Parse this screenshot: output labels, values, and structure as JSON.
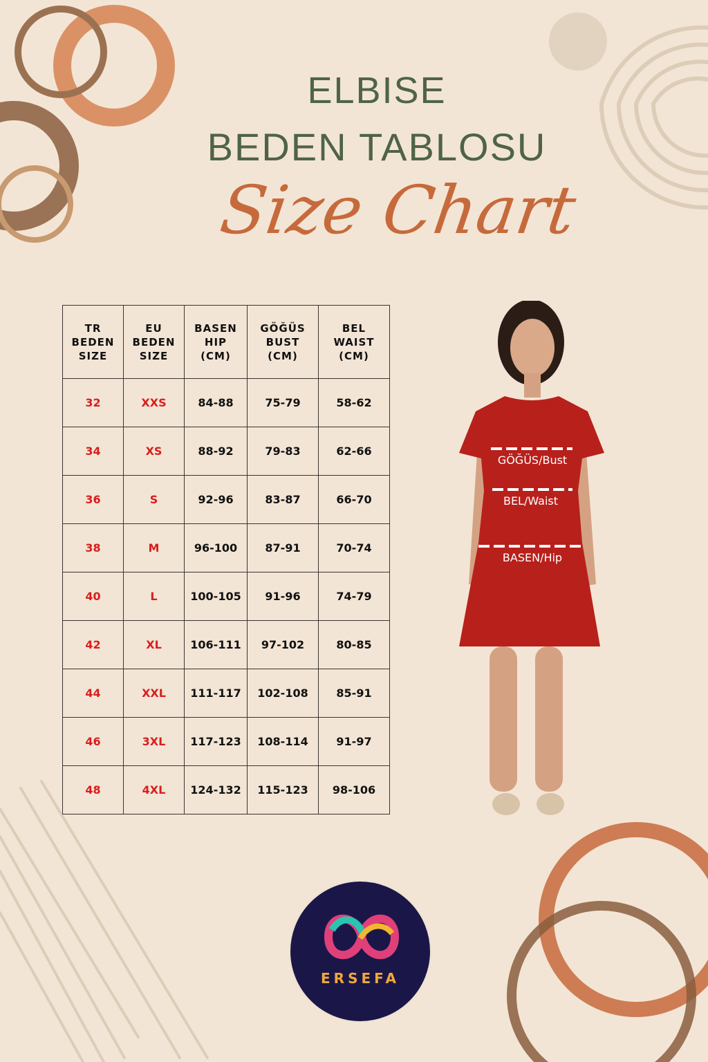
{
  "title": {
    "line1": "ELBISE",
    "line2": "BEDEN TABLOSU",
    "script": "Size Chart"
  },
  "table": {
    "headers": [
      [
        "TR",
        "BEDEN",
        "SIZE"
      ],
      [
        "EU",
        "BEDEN",
        "SIZE"
      ],
      [
        "BASEN",
        "HIP",
        "(CM)"
      ],
      [
        "GÖĞÜS",
        "BUST",
        "(CM)"
      ],
      [
        "BEL",
        "WAIST",
        "(CM)"
      ]
    ],
    "rows": [
      [
        "32",
        "XXS",
        "84-88",
        "75-79",
        "58-62"
      ],
      [
        "34",
        "XS",
        "88-92",
        "79-83",
        "62-66"
      ],
      [
        "36",
        "S",
        "92-96",
        "83-87",
        "66-70"
      ],
      [
        "38",
        "M",
        "96-100",
        "87-91",
        "70-74"
      ],
      [
        "40",
        "L",
        "100-105",
        "91-96",
        "74-79"
      ],
      [
        "42",
        "XL",
        "106-111",
        "97-102",
        "80-85"
      ],
      [
        "44",
        "XXL",
        "111-117",
        "102-108",
        "85-91"
      ],
      [
        "46",
        "3XL",
        "117-123",
        "108-114",
        "91-97"
      ],
      [
        "48",
        "4XL",
        "124-132",
        "115-123",
        "98-106"
      ]
    ]
  },
  "figure": {
    "bust_label": "GÖĞÜS/Bust",
    "waist_label": "BEL/Waist",
    "hip_label": "BASEN/Hip"
  },
  "logo": {
    "text": "ERSEFA"
  },
  "colors": {
    "background": "#f3e5d5",
    "title": "#4f6446",
    "script": "#c66a3c",
    "size_red": "#d81e1e",
    "dress": "#b8201c",
    "logo_bg": "#1a1748"
  }
}
